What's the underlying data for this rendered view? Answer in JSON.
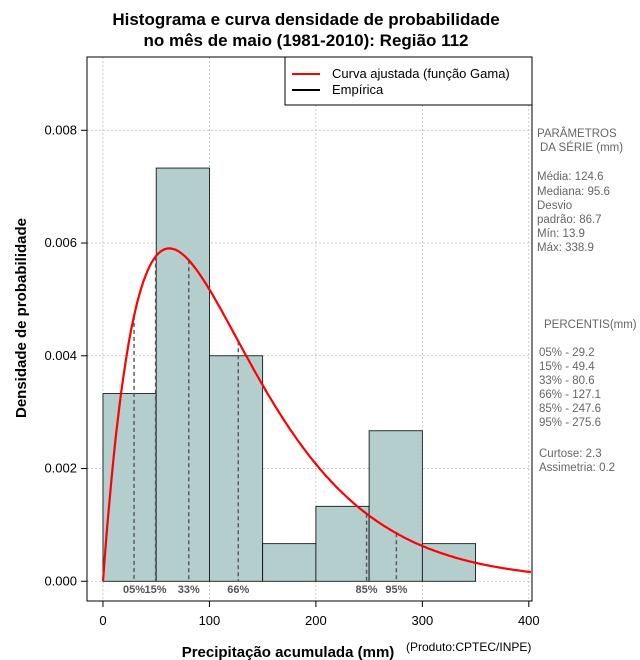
{
  "chart_data": {
    "type": "bar",
    "title_line1": "Histograma e curva densidade de probabilidade",
    "title_line2": "no mês de maio (1981-2010): Região 112",
    "xlabel": "Precipitação acumulada (mm)",
    "ylabel": "Densidade de probabilidade",
    "credit": "(Produto:CPTEC/INPE)",
    "xlim": [
      -15,
      403
    ],
    "ylim": [
      -0.00035,
      0.0093
    ],
    "x_ticks": [
      0,
      100,
      200,
      300,
      400
    ],
    "x_tick_labels": [
      "0",
      "100",
      "200",
      "300",
      "400"
    ],
    "y_ticks": [
      0,
      0.002,
      0.004,
      0.006,
      0.008
    ],
    "y_tick_labels": [
      "0.000",
      "0.002",
      "0.004",
      "0.006",
      "0.008"
    ],
    "bins": [
      {
        "from": 0,
        "to": 50,
        "density": 0.00333
      },
      {
        "from": 50,
        "to": 100,
        "density": 0.00733
      },
      {
        "from": 100,
        "to": 150,
        "density": 0.004
      },
      {
        "from": 150,
        "to": 200,
        "density": 0.000667
      },
      {
        "from": 200,
        "to": 250,
        "density": 0.00133
      },
      {
        "from": 250,
        "to": 300,
        "density": 0.00267
      },
      {
        "from": 300,
        "to": 350,
        "density": 0.000667
      }
    ],
    "gamma_fit": {
      "shape": 2.0,
      "scale": 62.3
    },
    "percentile_lines": [
      {
        "label": "05%",
        "x": 29.2
      },
      {
        "label": "15%",
        "x": 49.4
      },
      {
        "label": "33%",
        "x": 80.6
      },
      {
        "label": "66%",
        "x": 127.1
      },
      {
        "label": "85%",
        "x": 247.6
      },
      {
        "label": "95%",
        "x": 275.6
      }
    ],
    "legend": {
      "position": "top-right",
      "entries": [
        {
          "label": "Curva ajustada (função Gama)",
          "color": "#ff0000"
        },
        {
          "label": "Empírica",
          "color": "#000000"
        }
      ]
    },
    "colors": {
      "bar_fill": "#b4cdcd",
      "curve": "#ff0000",
      "percentile": "#555555",
      "side_text": "#666666"
    },
    "grid": true
  },
  "side_panel": {
    "params_title_1": "PARÂMETROS",
    "params_title_2": "DA SÉRIE (mm)",
    "media": "Média:  124.6",
    "mediana": "Mediana:  95.6",
    "desvio_1": "Desvio",
    "desvio_2": "padrão:  86.7",
    "min": "Mín:  13.9",
    "max": "Máx:  338.9",
    "percentis_title": "PERCENTIS(mm)",
    "percentiles": [
      "05% -   29.2",
      "15% -   49.4",
      "33% -   80.6",
      "66% -   127.1",
      "85% -   247.6",
      "95% -   275.6"
    ],
    "curtose": "Curtose:  2.3",
    "assimetria": "Assimetria:  0.2"
  }
}
